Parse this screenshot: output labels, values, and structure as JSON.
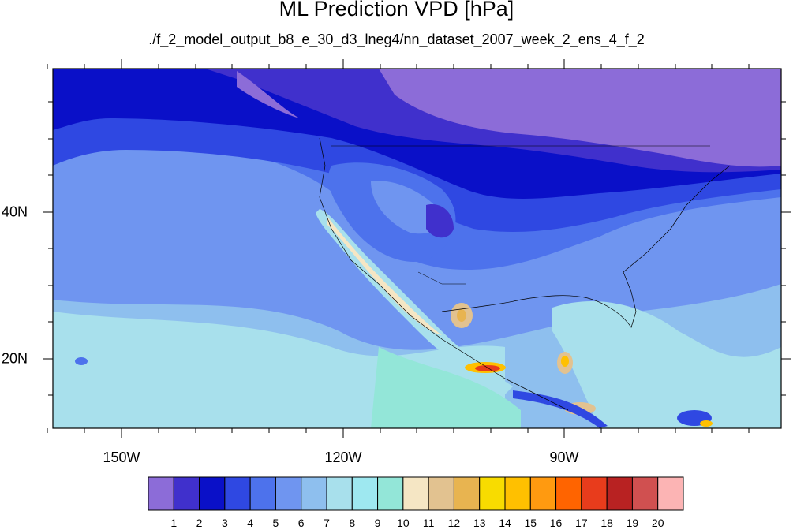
{
  "title": "ML Prediction VPD [hPa]",
  "subtitle": "./f_2_model_output_b8_e_30_d3_lneg4/nn_dataset_2007_week_2_ens_4_f_2",
  "axes": {
    "lon_labels": [
      "150W",
      "120W",
      "90W"
    ],
    "lat_labels": [
      "40N",
      "20N"
    ]
  },
  "colorbar": {
    "colors": [
      "#8c6cd8",
      "#4030cc",
      "#0a10c8",
      "#2f48e2",
      "#4d72ec",
      "#6f95f0",
      "#8ebfee",
      "#a8e0ec",
      "#9ee8f0",
      "#93e6d8",
      "#f5e6c4",
      "#e2c290",
      "#e8b450",
      "#f8dc00",
      "#ffc000",
      "#ff9a10",
      "#ff6400",
      "#e83c1c",
      "#b82222",
      "#d05050",
      "#fcb4b4"
    ],
    "labels": [
      "1",
      "2",
      "3",
      "4",
      "5",
      "6",
      "7",
      "8",
      "9",
      "10",
      "11",
      "12",
      "13",
      "14",
      "15",
      "16",
      "17",
      "18",
      "19",
      "20"
    ]
  }
}
